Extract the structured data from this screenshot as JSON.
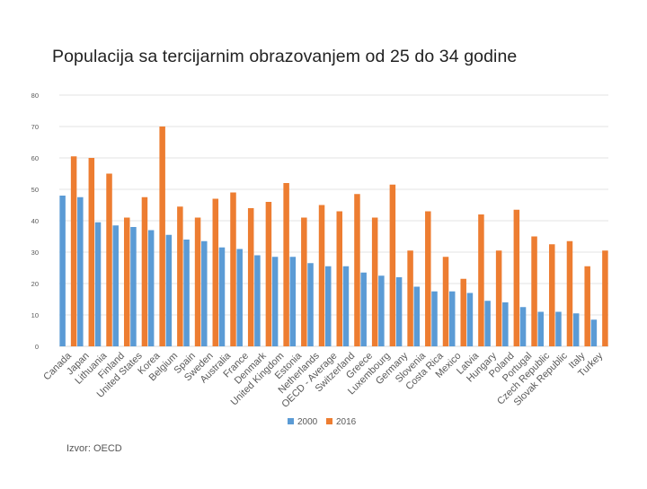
{
  "page": {
    "title": "Populacija sa tercijarnim obrazovanjem od 25 do 34 godine",
    "source": "Izvor: OECD"
  },
  "colors": {
    "series_2000": "#5b9bd5",
    "series_2016": "#ed7d31",
    "grid": "#e3e3e3",
    "axis": "#d9d9d9",
    "tick_text": "#595959",
    "title_text": "#222222"
  },
  "chart_data": {
    "type": "bar",
    "title": "Populacija sa tercijarnim obrazovanjem od 25 do 34 godine",
    "xlabel": "",
    "ylabel": "",
    "ylim": [
      0,
      80
    ],
    "yticks": [
      0,
      10,
      20,
      30,
      40,
      50,
      60,
      70,
      80
    ],
    "grid": true,
    "legend_position": "bottom-center",
    "categories": [
      "Canada",
      "Japan",
      "Lithuania",
      "Finland",
      "United States",
      "Korea",
      "Belgium",
      "Spain",
      "Sweden",
      "Australia",
      "France",
      "Denmark",
      "United Kingdom",
      "Estonia",
      "Netherlands",
      "OECD - Average",
      "Switzerland",
      "Greece",
      "Luxembourg",
      "Germany",
      "Slovenia",
      "Costa Rica",
      "Mexico",
      "Latvia",
      "Hungary",
      "Poland",
      "Portugal",
      "Czech Republic",
      "Slovak Republic",
      "Italy",
      "Turkey"
    ],
    "series": [
      {
        "name": "2000",
        "color": "#5b9bd5",
        "values": [
          48,
          47.5,
          39.5,
          38.5,
          38,
          37,
          35.5,
          34,
          33.5,
          31.5,
          31,
          29,
          28.5,
          28.5,
          26.5,
          25.5,
          25.5,
          23.5,
          22.5,
          22,
          19,
          17.5,
          17.5,
          17,
          14.5,
          14,
          12.5,
          11,
          11,
          10.5,
          8.5
        ]
      },
      {
        "name": "2016",
        "color": "#ed7d31",
        "values": [
          60.5,
          60,
          55,
          41,
          47.5,
          70,
          44.5,
          41,
          47,
          49,
          44,
          46,
          52,
          41,
          45,
          43,
          48.5,
          41,
          51.5,
          30.5,
          43,
          28.5,
          21.5,
          42,
          30.5,
          43.5,
          35,
          32.5,
          33.5,
          25.5,
          30.5
        ]
      }
    ]
  }
}
